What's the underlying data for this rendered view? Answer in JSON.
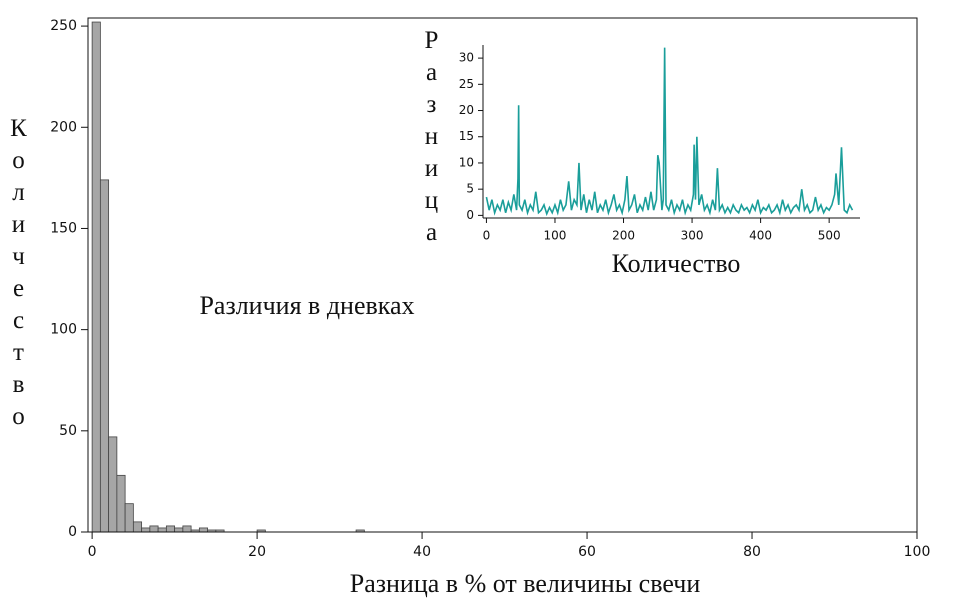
{
  "chart_data": [
    {
      "type": "histogram",
      "xlabel": "Разница в % от величины свечи",
      "ylabel": "Количество",
      "annotation": "Различия в дневках",
      "color": "#a6a6a6",
      "bins": [
        0,
        1,
        2,
        3,
        4,
        5,
        6,
        7,
        8,
        9,
        10,
        11,
        12,
        13,
        14,
        15,
        16,
        17,
        18,
        19,
        20,
        21,
        22,
        23,
        24,
        25,
        26,
        27,
        28,
        29,
        30,
        31,
        32,
        33,
        34,
        35,
        36,
        37,
        38,
        39,
        40,
        41,
        42,
        43,
        44,
        45,
        46,
        47,
        48,
        49,
        50,
        51,
        52,
        53,
        54,
        55,
        56,
        57,
        58,
        59,
        60,
        61,
        62,
        63,
        64,
        65,
        66,
        67,
        68,
        69,
        70,
        71,
        72,
        73,
        74,
        75,
        76,
        77,
        78,
        79,
        80,
        81,
        82,
        83,
        84,
        85,
        86,
        87,
        88,
        89,
        90,
        91,
        92,
        93,
        94,
        95,
        96,
        97,
        98,
        99,
        100
      ],
      "values": [
        252,
        174,
        47,
        28,
        14,
        5,
        2,
        3,
        2,
        3,
        2,
        3,
        1,
        2,
        1,
        1,
        0,
        0,
        0,
        0,
        1,
        0,
        0,
        0,
        0,
        0,
        0,
        0,
        0,
        0,
        0,
        0,
        1,
        0,
        0,
        0,
        0,
        0,
        0,
        0,
        0,
        0,
        0,
        0,
        0,
        0,
        0,
        0,
        0,
        0,
        0,
        0,
        0,
        0,
        0,
        0,
        0,
        0,
        0,
        0,
        0,
        0,
        0,
        0,
        0,
        0,
        0,
        0,
        0,
        0,
        0,
        0,
        0,
        0,
        0,
        0,
        0,
        0,
        0,
        0,
        0,
        0,
        0,
        0,
        0,
        0,
        0,
        0,
        0,
        0,
        0,
        0,
        0,
        0,
        0,
        0,
        0,
        0,
        0,
        0
      ],
      "xlim": [
        -0.5,
        100
      ],
      "ylim": [
        0,
        254
      ],
      "xticks": [
        0,
        20,
        40,
        60,
        80,
        100
      ],
      "yticks": [
        0,
        50,
        100,
        150,
        200,
        250
      ]
    },
    {
      "type": "line",
      "xlabel": "Количество",
      "ylabel": "Разница",
      "color": "#1a9e9a",
      "x": [
        0,
        4,
        8,
        12,
        16,
        20,
        24,
        28,
        32,
        36,
        40,
        44,
        46,
        47,
        48,
        52,
        56,
        60,
        64,
        68,
        72,
        76,
        80,
        84,
        88,
        92,
        96,
        100,
        104,
        108,
        112,
        116,
        120,
        124,
        128,
        132,
        135,
        138,
        142,
        146,
        150,
        154,
        158,
        162,
        166,
        170,
        174,
        178,
        182,
        186,
        190,
        194,
        198,
        202,
        205,
        208,
        212,
        216,
        220,
        224,
        228,
        232,
        236,
        240,
        244,
        248,
        250,
        252,
        256,
        258,
        260,
        262,
        266,
        270,
        274,
        278,
        282,
        286,
        290,
        294,
        298,
        302,
        303,
        305,
        307,
        310,
        314,
        318,
        322,
        326,
        330,
        334,
        337,
        340,
        344,
        348,
        352,
        356,
        360,
        364,
        368,
        372,
        376,
        380,
        384,
        388,
        392,
        396,
        400,
        404,
        408,
        412,
        416,
        420,
        424,
        428,
        432,
        436,
        440,
        444,
        448,
        452,
        456,
        460,
        464,
        468,
        472,
        476,
        480,
        484,
        488,
        492,
        496,
        500,
        504,
        508,
        510,
        514,
        518,
        522,
        526,
        530,
        534
      ],
      "values": [
        3.5,
        1,
        3,
        0.5,
        2,
        1,
        3,
        0.5,
        2.5,
        1,
        4,
        1,
        7,
        21,
        2,
        1,
        3,
        0.5,
        2,
        1,
        4.5,
        0.5,
        1,
        2,
        0.3,
        1.5,
        0.5,
        2,
        0.5,
        3,
        1,
        2,
        6.5,
        1,
        3,
        2,
        10,
        1,
        4,
        0.5,
        3,
        1,
        4.5,
        0.5,
        2,
        1,
        3,
        0.5,
        2,
        4,
        1,
        2,
        0.5,
        3,
        7.5,
        1,
        2,
        4,
        0.5,
        2,
        1,
        3.5,
        1,
        4.5,
        1,
        3,
        11.5,
        10,
        1,
        3,
        32,
        2,
        1,
        3,
        0.5,
        2,
        1,
        3,
        0.5,
        2,
        1,
        4,
        13.5,
        3,
        15,
        2,
        4,
        1,
        2,
        0.5,
        3,
        1,
        9,
        1,
        2,
        0.5,
        1.5,
        0.5,
        2,
        1,
        0.5,
        2,
        1,
        1.5,
        0.5,
        2,
        1,
        3,
        0.5,
        1.5,
        1,
        2,
        0.5,
        1,
        2,
        0.5,
        3,
        1,
        2,
        0.5,
        1.5,
        2,
        1,
        5,
        1,
        2,
        0.5,
        1,
        3.5,
        1,
        2,
        0.5,
        1.5,
        1,
        2,
        4,
        8,
        2,
        13,
        1,
        0.5,
        2,
        1
      ],
      "xlim": [
        -5,
        545
      ],
      "ylim": [
        -0.5,
        32.5
      ],
      "xticks": [
        0,
        100,
        200,
        300,
        400,
        500
      ],
      "yticks": [
        0,
        5,
        10,
        15,
        20,
        25,
        30
      ]
    }
  ]
}
